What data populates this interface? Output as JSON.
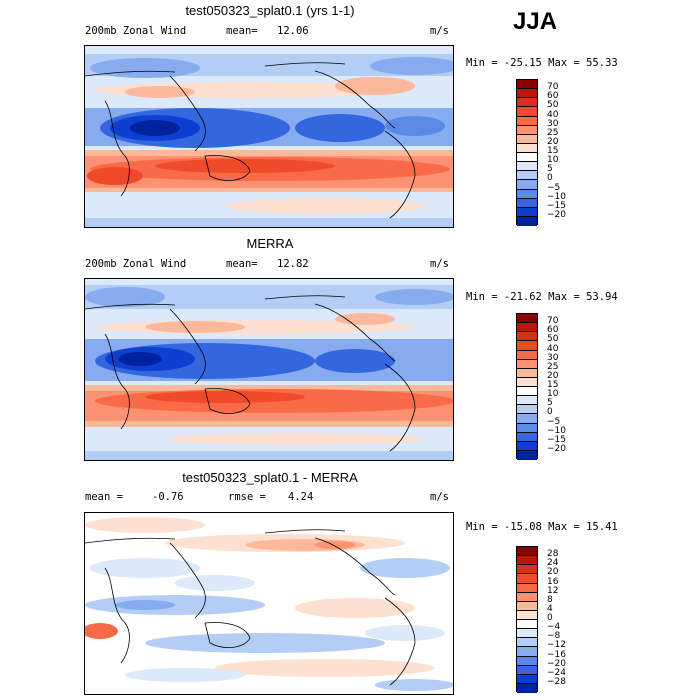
{
  "season": "JJA",
  "panels": [
    {
      "title": "test050323_splat0.1 (yrs 1-1)",
      "left_label": "200mb Zonal Wind",
      "stat_label": "mean=",
      "stat_value": "12.06",
      "units": "m/s",
      "minmax": "Min = -25.15 Max =  55.33",
      "colorbar_labels": [
        "70",
        "60",
        "50",
        "40",
        "30",
        "25",
        "20",
        "15",
        "10",
        "5",
        "0",
        "−5",
        "−10",
        "−15",
        "−20"
      ],
      "colorbar_colors": [
        "#8c0000",
        "#b8180c",
        "#d9301c",
        "#ef4a2a",
        "#f96a48",
        "#fc9272",
        "#fcb89a",
        "#fde0cf",
        "#ffffff",
        "#dce9fb",
        "#b3cdf5",
        "#86acef",
        "#5b89e8",
        "#3466e0",
        "#0d3fd0",
        "#00229e"
      ]
    },
    {
      "title": "MERRA",
      "left_label": "200mb Zonal Wind",
      "stat_label": "mean=",
      "stat_value": "12.82",
      "units": "m/s",
      "minmax": "Min = -21.62 Max =  53.94",
      "colorbar_labels": [
        "70",
        "60",
        "50",
        "40",
        "30",
        "25",
        "20",
        "15",
        "10",
        "5",
        "0",
        "−5",
        "−10",
        "−15",
        "−20"
      ],
      "colorbar_colors": [
        "#8c0000",
        "#b8180c",
        "#d9301c",
        "#ef4a2a",
        "#f96a48",
        "#fc9272",
        "#fcb89a",
        "#fde0cf",
        "#ffffff",
        "#dce9fb",
        "#b3cdf5",
        "#86acef",
        "#5b89e8",
        "#3466e0",
        "#0d3fd0",
        "#00229e"
      ]
    },
    {
      "title": "test050323_splat0.1 - MERRA",
      "left_label": "mean =",
      "left_value": "-0.76",
      "stat_label": "rmse =",
      "stat_value": "4.24",
      "units": "m/s",
      "minmax": "Min = -15.08 Max =  15.41",
      "colorbar_labels": [
        "28",
        "24",
        "20",
        "16",
        "12",
        "8",
        "4",
        "0",
        "−4",
        "−8",
        "−12",
        "−16",
        "−20",
        "−24",
        "−28"
      ],
      "colorbar_colors": [
        "#8c0000",
        "#b8180c",
        "#d9301c",
        "#ef4a2a",
        "#f96a48",
        "#fc9272",
        "#fcb89a",
        "#fde0cf",
        "#ffffff",
        "#dce9fb",
        "#b3cdf5",
        "#86acef",
        "#5b89e8",
        "#3466e0",
        "#0d3fd0",
        "#00229e"
      ]
    }
  ]
}
